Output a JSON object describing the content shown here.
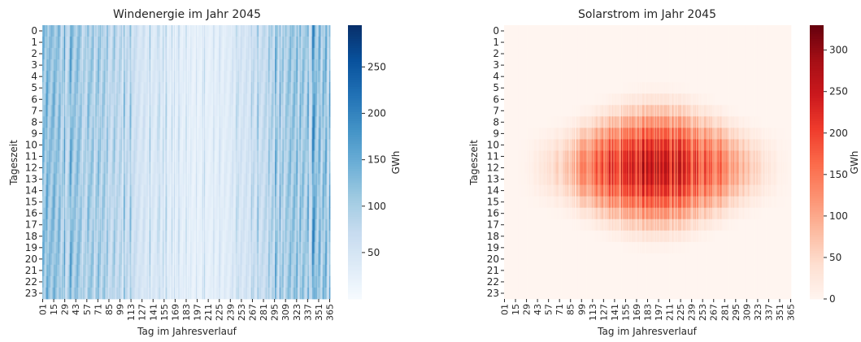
{
  "chart_data": [
    {
      "type": "heatmap",
      "title": "Windenergie im Jahr 2045",
      "xlabel": "Tag im Jahresverlauf",
      "ylabel": "Tageszeit",
      "x_tick_labels": [
        "01",
        "15",
        "29",
        "43",
        "57",
        "71",
        "85",
        "99",
        "113",
        "127",
        "141",
        "155",
        "169",
        "183",
        "197",
        "211",
        "225",
        "239",
        "253",
        "267",
        "281",
        "295",
        "309",
        "323",
        "337",
        "351",
        "365"
      ],
      "y_tick_labels": [
        "0",
        "1",
        "2",
        "3",
        "4",
        "5",
        "6",
        "7",
        "8",
        "9",
        "10",
        "11",
        "12",
        "13",
        "14",
        "15",
        "16",
        "17",
        "18",
        "19",
        "20",
        "21",
        "22",
        "23"
      ],
      "colormap": "Blues",
      "colorbar": {
        "label": "GWh",
        "min": 0,
        "max": 295,
        "ticks": [
          "50",
          "100",
          "150",
          "200",
          "250"
        ]
      }
    },
    {
      "type": "heatmap",
      "title": "Solarstrom im Jahr 2045",
      "xlabel": "Tag im Jahresverlauf",
      "ylabel": "Tageszeit",
      "x_tick_labels": [
        "01",
        "15",
        "29",
        "43",
        "57",
        "71",
        "85",
        "99",
        "113",
        "127",
        "141",
        "155",
        "169",
        "183",
        "197",
        "211",
        "225",
        "239",
        "253",
        "267",
        "281",
        "295",
        "309",
        "323",
        "337",
        "351",
        "365"
      ],
      "y_tick_labels": [
        "0",
        "1",
        "2",
        "3",
        "4",
        "5",
        "6",
        "7",
        "8",
        "9",
        "10",
        "11",
        "12",
        "13",
        "14",
        "15",
        "16",
        "17",
        "18",
        "19",
        "20",
        "21",
        "22",
        "23"
      ],
      "colormap": "Reds",
      "colorbar": {
        "label": "GWh",
        "min": 0,
        "max": 330,
        "ticks": [
          "0",
          "50",
          "100",
          "150",
          "200",
          "250",
          "300"
        ]
      }
    }
  ]
}
